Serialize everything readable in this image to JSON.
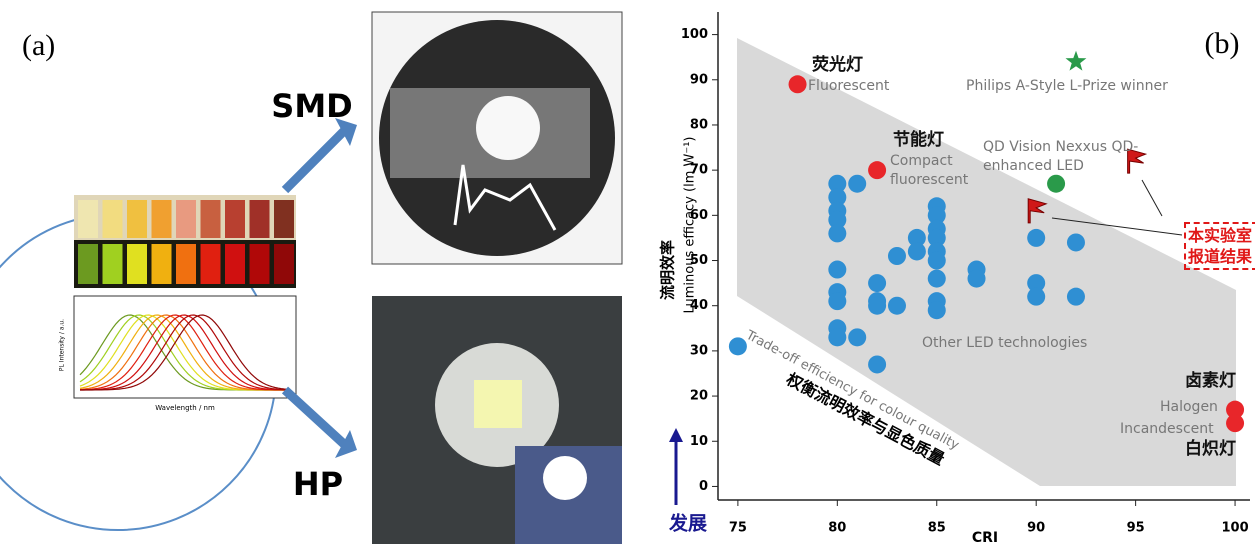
{
  "panel_a": {
    "label": "(a)",
    "smd": "SMD",
    "hp": "HP",
    "spectrum_ylabel": "PL Intensity / a.u.",
    "spectrum_xlabel": "Wavelength / nm"
  },
  "chart_data": {
    "type": "scatter",
    "panel_label": "(b)",
    "x_label": "CRI",
    "y_label": "Luminous efficacy (lm W⁻¹)",
    "y_label_cn": "流明效率",
    "xlim": [
      74,
      100.5
    ],
    "ylim": [
      -3,
      105
    ],
    "xticks": [
      75,
      80,
      85,
      90,
      95,
      100
    ],
    "yticks": [
      0,
      10,
      20,
      30,
      40,
      50,
      60,
      70,
      80,
      90,
      100
    ],
    "band_label": "Trade-off efficiency for colour quality",
    "band_label_cn": "权衡流明效率与显色质量",
    "trend_label": "发展",
    "series": [
      {
        "name": "Other LED technologies",
        "color": "#2f8fd3",
        "marker": "circle",
        "x": [
          75,
          80,
          80,
          80,
          80,
          80,
          80,
          80,
          80,
          80,
          80,
          81,
          81,
          82,
          82,
          82,
          82,
          83,
          83,
          84,
          84,
          85,
          85,
          85,
          85,
          85,
          85,
          85,
          85,
          85,
          87,
          87,
          90,
          90,
          90,
          92,
          92
        ],
        "y": [
          31,
          67,
          64,
          61,
          59,
          56,
          48,
          43,
          41,
          35,
          33,
          67,
          33,
          45,
          41,
          40,
          27,
          51,
          40,
          55,
          52,
          62,
          60,
          57,
          55,
          52,
          50,
          46,
          41,
          39,
          48,
          46,
          55,
          45,
          42,
          54,
          42
        ]
      },
      {
        "name": "Fluorescent",
        "label_cn": "荧光灯",
        "color": "#e8262a",
        "marker": "circle",
        "x": [
          78
        ],
        "y": [
          89
        ]
      },
      {
        "name": "Compact fluorescent",
        "label_cn": "节能灯",
        "color": "#e8262a",
        "marker": "circle",
        "x": [
          82
        ],
        "y": [
          70
        ]
      },
      {
        "name": "Philips A-Style L-Prize winner",
        "color": "#2a9a4a",
        "marker": "star",
        "x": [
          92
        ],
        "y": [
          94
        ]
      },
      {
        "name": "QD Vision Nexxus QD-enhanced LED",
        "color": "#2a9a4a",
        "marker": "circle",
        "x": [
          91
        ],
        "y": [
          67
        ]
      },
      {
        "name": "Halogen",
        "label_cn": "卤素灯",
        "color": "#e8262a",
        "marker": "circle",
        "x": [
          100
        ],
        "y": [
          17
        ]
      },
      {
        "name": "Incandescent",
        "label_cn": "白炽灯",
        "color": "#e8262a",
        "marker": "circle",
        "x": [
          100
        ],
        "y": [
          14
        ]
      },
      {
        "name": "本实验室报道结果",
        "color": "#d01818",
        "marker": "flag",
        "x": [
          90,
          95
        ],
        "y": [
          61,
          72
        ]
      }
    ]
  }
}
